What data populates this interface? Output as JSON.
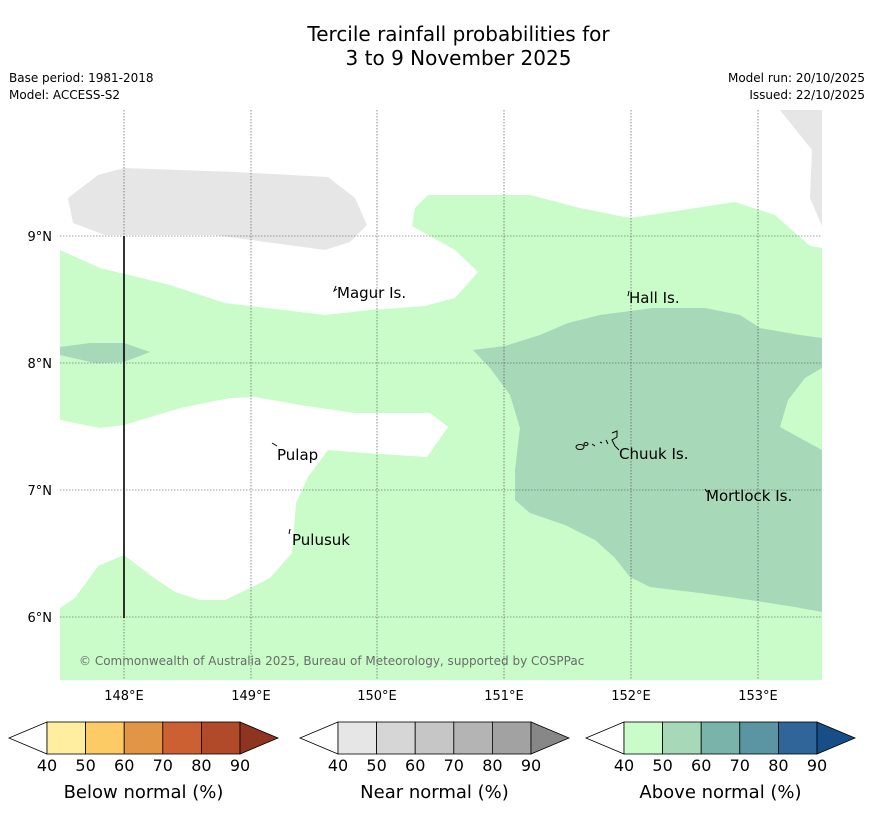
{
  "title": {
    "line1": "Tercile rainfall probabilities for",
    "line2": "3 to 9 November 2025"
  },
  "meta": {
    "base_period": "Base period: 1981-2018",
    "model": "Model: ACCESS-S2",
    "model_run": "Model run: 20/10/2025",
    "issued": "Issued: 22/10/2025"
  },
  "map": {
    "lat_labels": [
      "9°N",
      "8°N",
      "7°N",
      "6°N"
    ],
    "lon_labels": [
      "148°E",
      "149°E",
      "150°E",
      "151°E",
      "152°E",
      "153°E"
    ],
    "places": {
      "magur": "Magur Is.",
      "hall": "Hall Is.",
      "pulap": "Pulap",
      "chuuk": "Chuuk Is.",
      "mortlock": "Mortlock Is.",
      "pulusuk": "Pulusuk"
    },
    "copyright": "© Commonwealth of Australia 2025, Bureau of Meteorology, supported by COSPPac"
  },
  "legend": {
    "below": {
      "label": "Below normal (%)",
      "ticks": [
        "40",
        "50",
        "60",
        "70",
        "80",
        "90"
      ],
      "colors": [
        "#ffeea0",
        "#fdcb66",
        "#e29545",
        "#cc6032",
        "#b14a28",
        "#8e3420"
      ]
    },
    "near": {
      "label": "Near normal (%)",
      "ticks": [
        "40",
        "50",
        "60",
        "70",
        "80",
        "90"
      ],
      "colors": [
        "#e6e6e6",
        "#d6d6d6",
        "#c6c6c6",
        "#b4b4b4",
        "#a2a2a2",
        "#878787"
      ]
    },
    "above": {
      "label": "Above normal (%)",
      "ticks": [
        "40",
        "50",
        "60",
        "70",
        "80",
        "90"
      ],
      "colors": [
        "#c9fcc9",
        "#a7d8b8",
        "#7ab3aa",
        "#5b94a2",
        "#2f6599",
        "#174e87"
      ]
    }
  }
}
